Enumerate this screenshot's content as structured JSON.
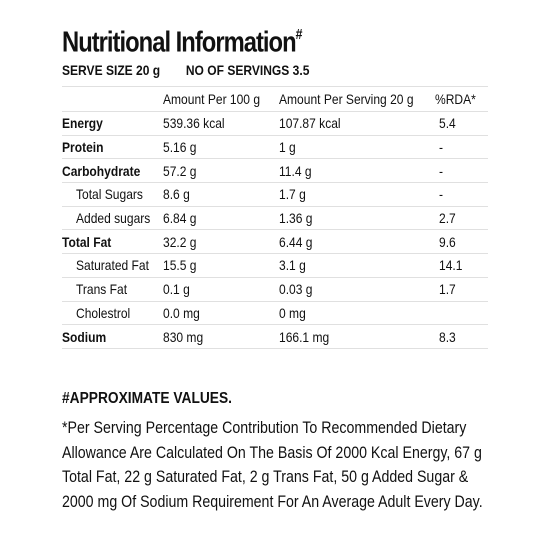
{
  "header": {
    "title": "Nutritional Information",
    "title_mark": "#",
    "serve_size": "SERVE SIZE 20 g",
    "servings": "NO OF SERVINGS 3.5"
  },
  "table": {
    "columns": [
      "",
      "Amount Per 100 g",
      "Amount Per Serving 20 g",
      "%RDA*"
    ],
    "rows": [
      {
        "label": "Energy",
        "per100": "539.36 kcal",
        "perServing": "107.87 kcal",
        "rda": "5.4"
      },
      {
        "label": "Protein",
        "per100": "5.16 g",
        "perServing": "1 g",
        "rda": "-"
      },
      {
        "label": "Carbohydrate",
        "per100": "57.2 g",
        "perServing": "11.4 g",
        "rda": "-"
      },
      {
        "label": "Total Sugars",
        "per100": "8.6 g",
        "perServing": "1.7 g",
        "rda": "-"
      },
      {
        "label": "Added sugars",
        "per100": "6.84 g",
        "perServing": "1.36 g",
        "rda": "2.7"
      },
      {
        "label": "Total Fat",
        "per100": "32.2 g",
        "perServing": "6.44 g",
        "rda": "9.6"
      },
      {
        "label": "Saturated Fat",
        "per100": "15.5 g",
        "perServing": "3.1 g",
        "rda": "14.1"
      },
      {
        "label": "Trans Fat",
        "per100": "0.1 g",
        "perServing": "0.03 g",
        "rda": "1.7"
      },
      {
        "label": "Cholestrol",
        "per100": "0.0 mg",
        "perServing": "0 mg",
        "rda": ""
      },
      {
        "label": "Sodium",
        "per100": "830 mg",
        "perServing": "166.1 mg",
        "rda": "8.3"
      }
    ]
  },
  "notes": {
    "approx": "#APPROXIMATE VALUES.",
    "footnote_lines": [
      "*Per Serving Percentage Contribution To Recommended Dietary",
      "Allowance Are Calculated On The Basis Of 2000 Kcal Energy, 67 g",
      "Total Fat, 22 g Saturated Fat, 2 g Trans Fat, 50 g Added Sugar &",
      "2000 mg Of Sodium Requirement For An Average Adult Every Day."
    ]
  }
}
